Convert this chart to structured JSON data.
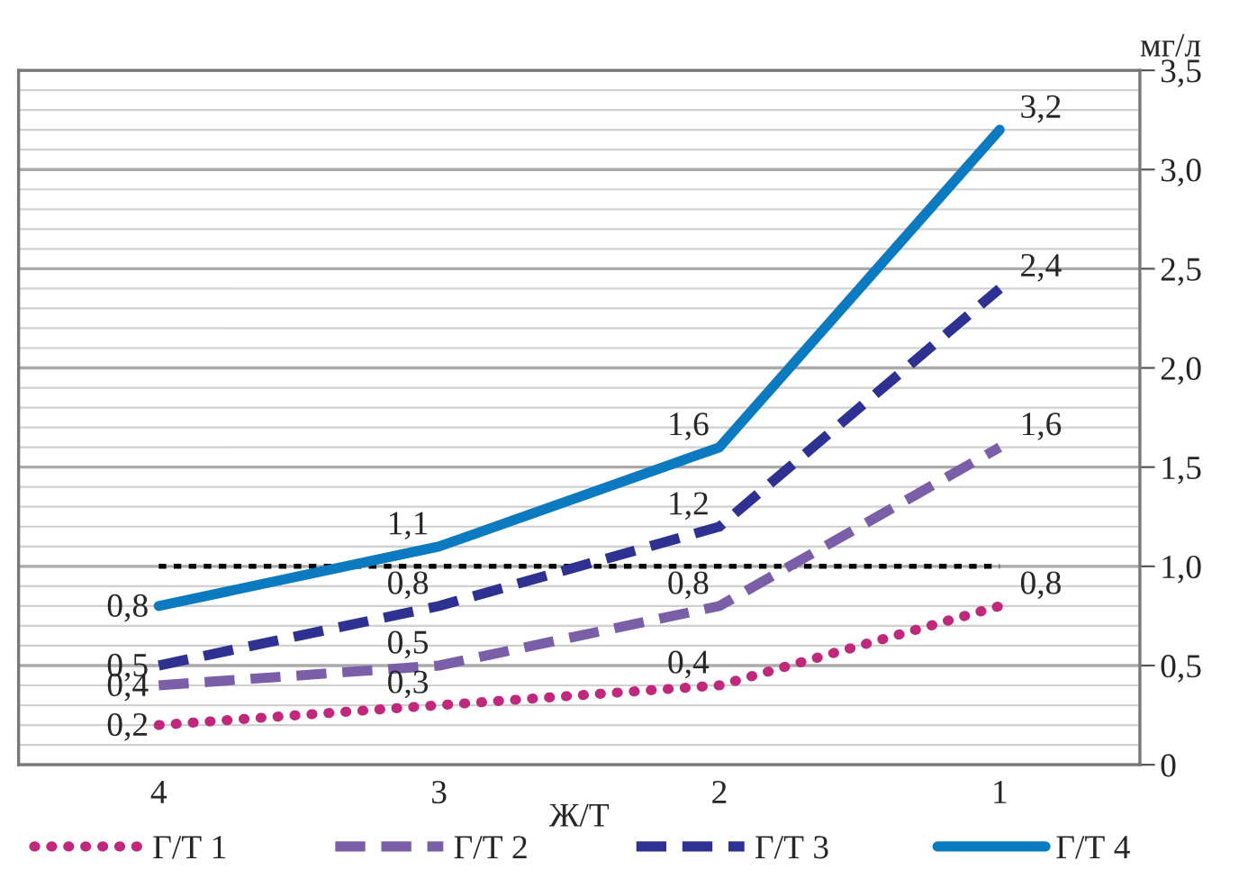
{
  "chart_data": {
    "type": "line",
    "xlabel": "Ж/Т",
    "ylabel": "мг/л",
    "categories": [
      "4",
      "3",
      "2",
      "1"
    ],
    "series": [
      {
        "name": "Г/Т 1",
        "color": "#c0287e",
        "line_style": "dotted",
        "values": [
          0.2,
          0.3,
          0.4,
          0.8
        ],
        "value_labels": [
          "0,2",
          "0,3",
          "0,4",
          "0,8"
        ]
      },
      {
        "name": "Г/Т 2",
        "color": "#7a5fa8",
        "line_style": "dashed",
        "values": [
          0.4,
          0.5,
          0.8,
          1.6
        ],
        "value_labels": [
          "0,4",
          "0,5",
          "0,8",
          "1,6"
        ]
      },
      {
        "name": "Г/Т 3",
        "color": "#2e3192",
        "line_style": "dashed",
        "values": [
          0.5,
          0.8,
          1.2,
          2.4
        ],
        "value_labels": [
          "0,5",
          "0,8",
          "1,2",
          "2,4"
        ]
      },
      {
        "name": "Г/Т 4",
        "color": "#0b7ac1",
        "line_style": "solid",
        "values": [
          0.8,
          1.1,
          1.6,
          3.2
        ],
        "value_labels": [
          "0,8",
          "1,1",
          "1,6",
          "3,2"
        ]
      }
    ],
    "ylim": [
      0,
      3.5
    ],
    "yticks": [
      0,
      {
        "value": 0.1,
        "label": null
      },
      {
        "value": 0.2,
        "label": null
      },
      {
        "value": 0.3,
        "label": null
      },
      {
        "value": 0.4,
        "label": null
      },
      {
        "value": 0.5,
        "label": "0,5"
      },
      {
        "value": 0.6,
        "label": null
      },
      {
        "value": 0.7,
        "label": null
      },
      {
        "value": 0.8,
        "label": null
      },
      {
        "value": 0.9,
        "label": null
      },
      {
        "value": 1.0,
        "label": "1,0"
      },
      {
        "value": 1.1,
        "label": null
      },
      {
        "value": 1.2,
        "label": null
      },
      {
        "value": 1.3,
        "label": null
      },
      {
        "value": 1.4,
        "label": null
      },
      {
        "value": 1.5,
        "label": "1,5"
      },
      {
        "value": 1.6,
        "label": null
      },
      {
        "value": 1.7,
        "label": null
      },
      {
        "value": 1.8,
        "label": null
      },
      {
        "value": 1.9,
        "label": null
      },
      {
        "value": 2.0,
        "label": "2,0"
      },
      {
        "value": 2.1,
        "label": null
      },
      {
        "value": 2.2,
        "label": null
      },
      {
        "value": 2.3,
        "label": null
      },
      {
        "value": 2.4,
        "label": null
      },
      {
        "value": 2.5,
        "label": "2,5"
      },
      {
        "value": 2.6,
        "label": null
      },
      {
        "value": 2.7,
        "label": null
      },
      {
        "value": 2.8,
        "label": null
      },
      {
        "value": 2.9,
        "label": null
      },
      {
        "value": 3.0,
        "label": "3,0"
      },
      {
        "value": 3.1,
        "label": null
      },
      {
        "value": 3.2,
        "label": null
      },
      {
        "value": 3.3,
        "label": null
      },
      {
        "value": 3.4,
        "label": null
      },
      {
        "value": 3.5,
        "label": "3,5"
      }
    ],
    "ref_lines": [
      {
        "axis": "y",
        "value": 1.0,
        "color": "#000000",
        "line_style": "dotted"
      }
    ],
    "grid": "y",
    "legend": "bottom",
    "marker": "none"
  }
}
